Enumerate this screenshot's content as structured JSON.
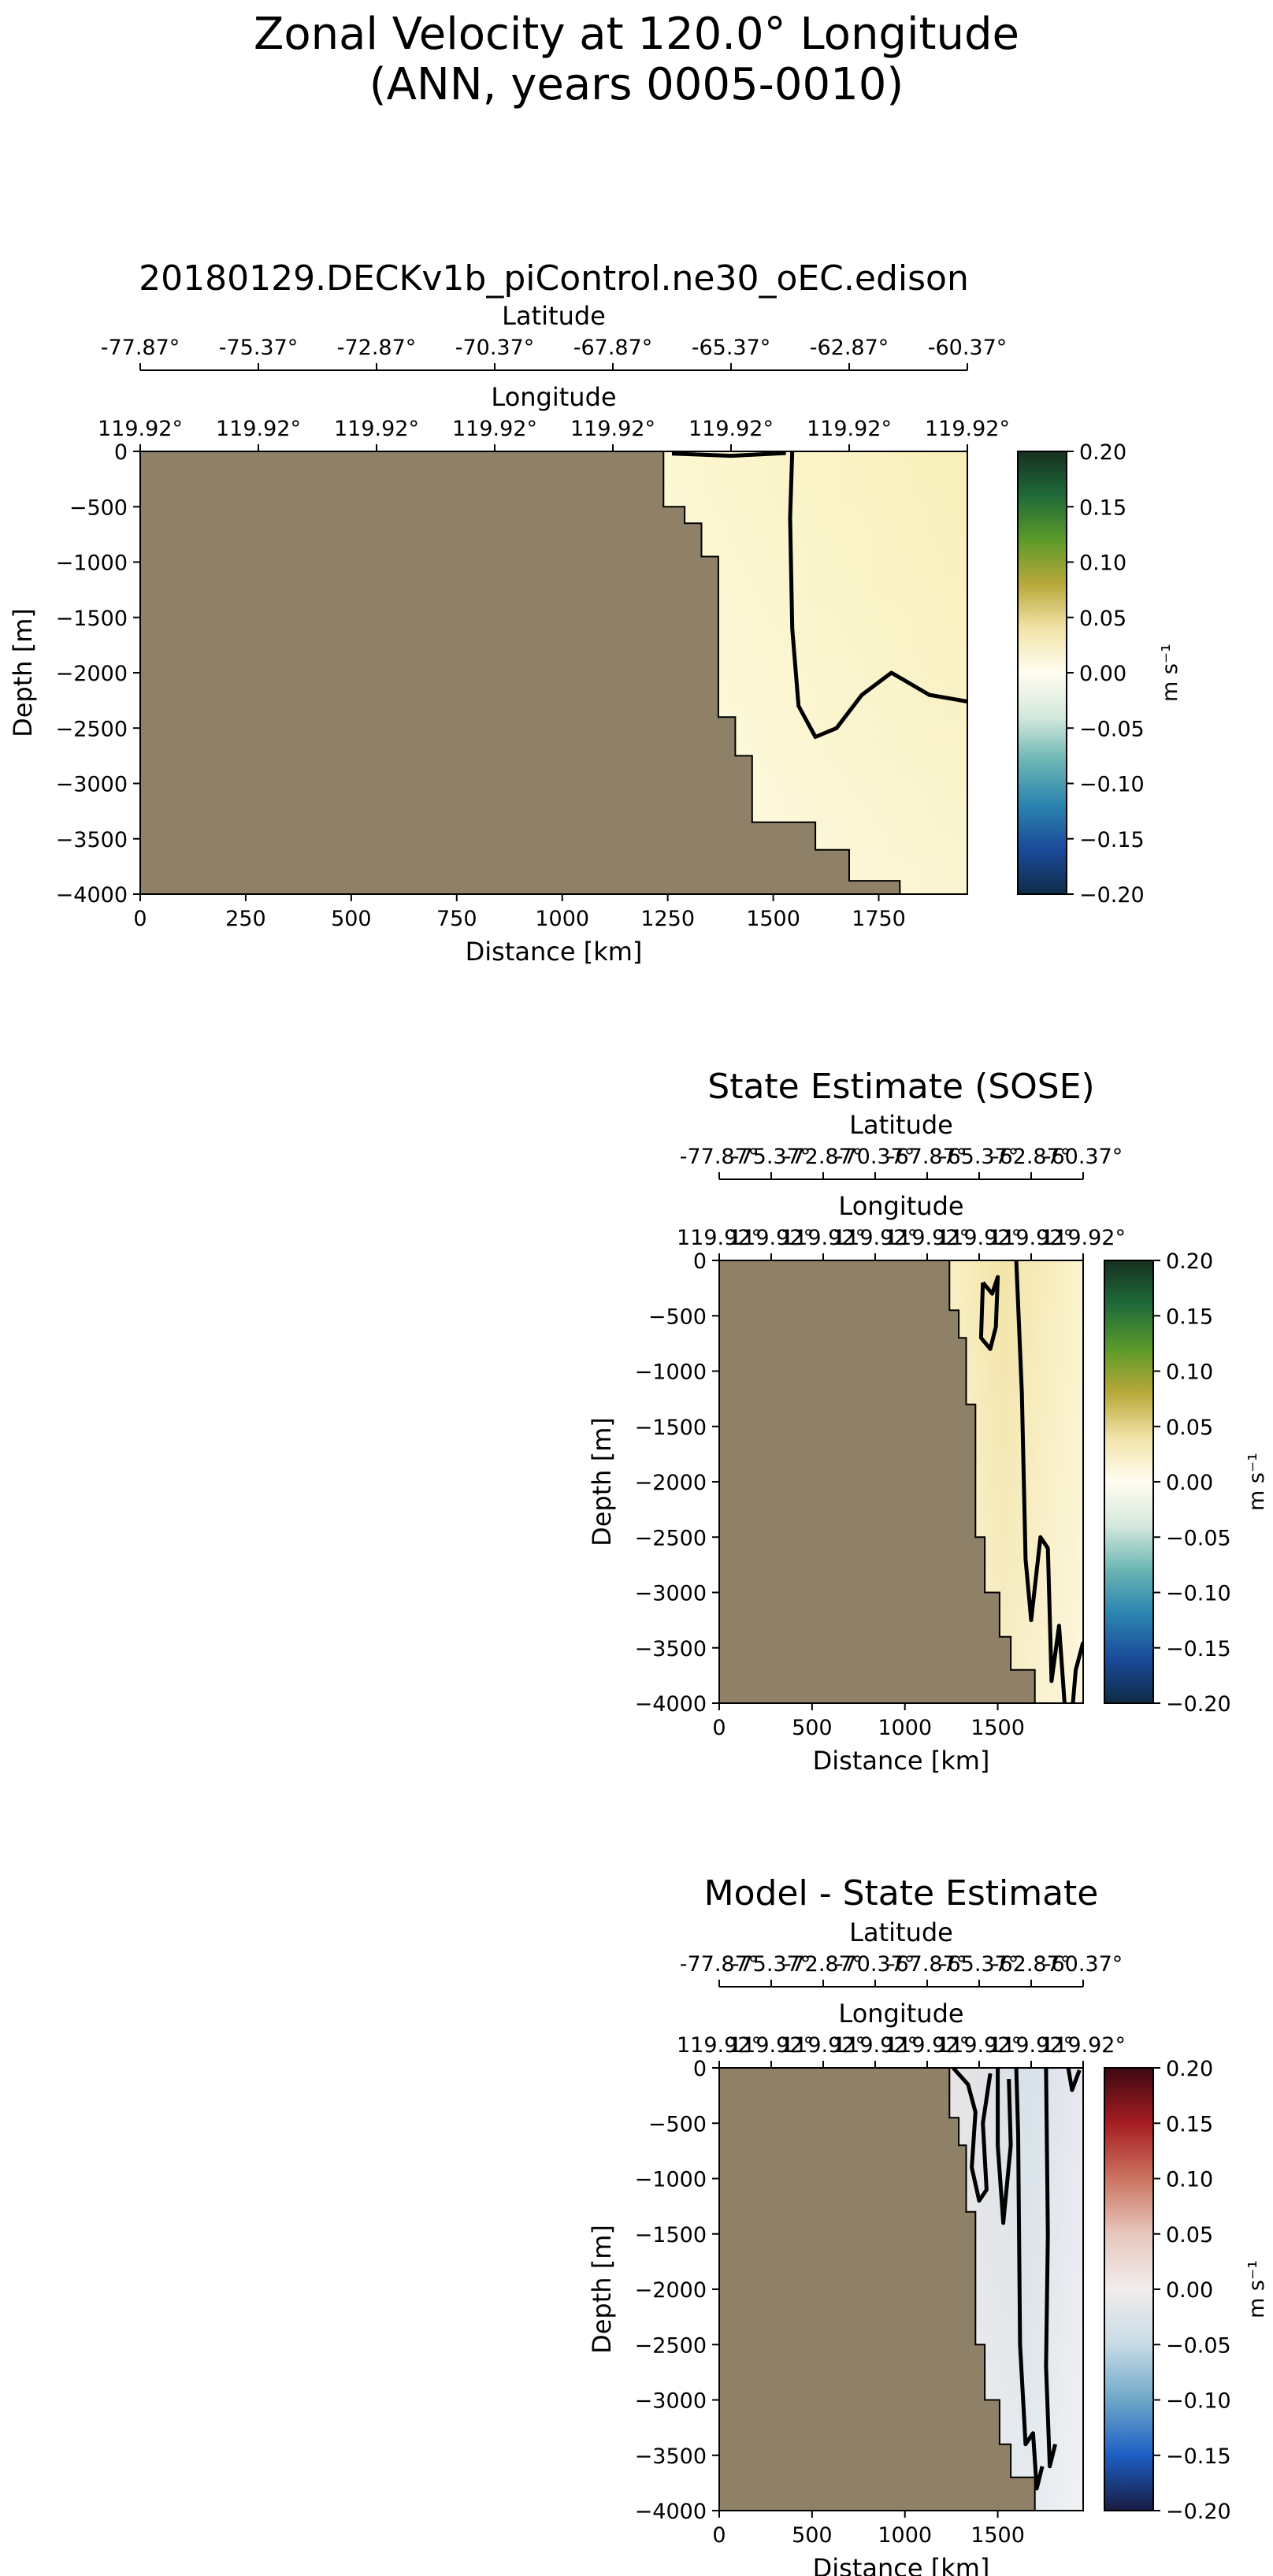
{
  "figure": {
    "title_line1": "Zonal Velocity at 120.0° Longitude",
    "title_line2": "(ANN, years 0005-0010)"
  },
  "colors": {
    "land": "#8f8068",
    "contour": "#000000"
  },
  "chart_data": [
    {
      "type": "heatmap",
      "id": "model",
      "title": "20180129.DECKv1b_piControl.ne30_oEC.edison",
      "xlabel": "Distance [km]",
      "ylabel": "Depth [m]",
      "xlim": [
        0,
        1960
      ],
      "ylim": [
        -4000,
        0
      ],
      "xticks": [
        0,
        250,
        500,
        750,
        1000,
        1250,
        1500,
        1750
      ],
      "yticks": [
        0,
        -500,
        -1000,
        -1500,
        -2000,
        -2500,
        -3000,
        -3500,
        -4000
      ],
      "secondary_axes": [
        {
          "label": "Latitude",
          "ticks": [
            "-77.87°",
            "-75.37°",
            "-72.87°",
            "-70.37°",
            "-67.87°",
            "-65.37°",
            "-62.87°",
            "-60.37°"
          ]
        },
        {
          "label": "Longitude",
          "ticks": [
            "119.92°",
            "119.92°",
            "119.92°",
            "119.92°",
            "119.92°",
            "119.92°",
            "119.92°",
            "119.92°"
          ]
        }
      ],
      "colorbar": {
        "cmap": "delta",
        "label": "m s⁻¹",
        "range": [
          -0.2,
          0.2
        ],
        "ticks": [
          "0.20",
          "0.15",
          "0.10",
          "0.05",
          "0.00",
          "−0.05",
          "−0.10",
          "−0.15",
          "−0.20"
        ]
      },
      "bathymetry_km_m": [
        [
          1240,
          0
        ],
        [
          1240,
          -500
        ],
        [
          1290,
          -500
        ],
        [
          1290,
          -650
        ],
        [
          1330,
          -650
        ],
        [
          1330,
          -950
        ],
        [
          1370,
          -950
        ],
        [
          1370,
          -2400
        ],
        [
          1410,
          -2400
        ],
        [
          1410,
          -2750
        ],
        [
          1450,
          -2750
        ],
        [
          1450,
          -3350
        ],
        [
          1600,
          -3350
        ],
        [
          1600,
          -3600
        ],
        [
          1680,
          -3600
        ],
        [
          1680,
          -3880
        ],
        [
          1800,
          -3880
        ],
        [
          1800,
          -4000
        ]
      ],
      "zero_contours": [
        [
          [
            1260,
            -20
          ],
          [
            1400,
            -40
          ],
          [
            1530,
            -15
          ]
        ],
        [
          [
            1545,
            0
          ],
          [
            1540,
            -600
          ],
          [
            1545,
            -1600
          ],
          [
            1560,
            -2300
          ],
          [
            1600,
            -2580
          ],
          [
            1650,
            -2500
          ],
          [
            1710,
            -2200
          ],
          [
            1780,
            -2000
          ],
          [
            1870,
            -2200
          ],
          [
            1960,
            -2260
          ]
        ]
      ]
    },
    {
      "type": "heatmap",
      "id": "sose",
      "title": "State Estimate (SOSE)",
      "xlabel": "Distance [km]",
      "ylabel": "Depth [m]",
      "xlim": [
        0,
        1960
      ],
      "ylim": [
        -4000,
        0
      ],
      "xticks": [
        0,
        500,
        1000,
        1500
      ],
      "yticks": [
        0,
        -500,
        -1000,
        -1500,
        -2000,
        -2500,
        -3000,
        -3500,
        -4000
      ],
      "secondary_axes": [
        {
          "label": "Latitude",
          "ticks": [
            "-77.87°",
            "-75.37°",
            "-72.87°",
            "-70.37°",
            "-67.87°",
            "-65.37°",
            "-62.87°",
            "-60.37°"
          ]
        },
        {
          "label": "Longitude",
          "ticks": [
            "119.92°",
            "119.92°",
            "119.92°",
            "119.92°",
            "119.92°",
            "119.92°",
            "119.92°",
            "119.92°"
          ]
        }
      ],
      "colorbar": {
        "cmap": "delta",
        "label": "m s⁻¹",
        "range": [
          -0.2,
          0.2
        ],
        "ticks": [
          "0.20",
          "0.15",
          "0.10",
          "0.05",
          "0.00",
          "−0.05",
          "−0.10",
          "−0.15",
          "−0.20"
        ]
      },
      "bathymetry_km_m": [
        [
          1240,
          0
        ],
        [
          1240,
          -450
        ],
        [
          1290,
          -450
        ],
        [
          1290,
          -700
        ],
        [
          1330,
          -700
        ],
        [
          1330,
          -1300
        ],
        [
          1380,
          -1300
        ],
        [
          1380,
          -2500
        ],
        [
          1430,
          -2500
        ],
        [
          1430,
          -3000
        ],
        [
          1510,
          -3000
        ],
        [
          1510,
          -3400
        ],
        [
          1570,
          -3400
        ],
        [
          1570,
          -3700
        ],
        [
          1700,
          -3700
        ],
        [
          1700,
          -4000
        ]
      ],
      "zero_contours": [
        [
          [
            1420,
            -200
          ],
          [
            1470,
            -300
          ],
          [
            1500,
            -150
          ],
          [
            1490,
            -600
          ],
          [
            1460,
            -800
          ],
          [
            1410,
            -700
          ],
          [
            1420,
            -200
          ]
        ],
        [
          [
            1600,
            0
          ],
          [
            1630,
            -1200
          ],
          [
            1650,
            -2700
          ],
          [
            1680,
            -3250
          ],
          [
            1730,
            -2500
          ],
          [
            1770,
            -2600
          ],
          [
            1790,
            -3800
          ],
          [
            1830,
            -3300
          ],
          [
            1860,
            -4000
          ]
        ],
        [
          [
            1960,
            -3450
          ],
          [
            1920,
            -3700
          ],
          [
            1905,
            -4000
          ]
        ]
      ]
    },
    {
      "type": "heatmap",
      "id": "difference",
      "title": "Model - State Estimate",
      "xlabel": "Distance [km]",
      "ylabel": "Depth [m]",
      "xlim": [
        0,
        1960
      ],
      "ylim": [
        -4000,
        0
      ],
      "xticks": [
        0,
        500,
        1000,
        1500
      ],
      "yticks": [
        0,
        -500,
        -1000,
        -1500,
        -2000,
        -2500,
        -3000,
        -3500,
        -4000
      ],
      "secondary_axes": [
        {
          "label": "Latitude",
          "ticks": [
            "-77.87°",
            "-75.37°",
            "-72.87°",
            "-70.37°",
            "-67.87°",
            "-65.37°",
            "-62.87°",
            "-60.37°"
          ]
        },
        {
          "label": "Longitude",
          "ticks": [
            "119.92°",
            "119.92°",
            "119.92°",
            "119.92°",
            "119.92°",
            "119.92°",
            "119.92°",
            "119.92°"
          ]
        }
      ],
      "colorbar": {
        "cmap": "balance",
        "label": "m s⁻¹",
        "range": [
          -0.2,
          0.2
        ],
        "ticks": [
          "0.20",
          "0.15",
          "0.10",
          "0.05",
          "0.00",
          "−0.05",
          "−0.10",
          "−0.15",
          "−0.20"
        ]
      },
      "bathymetry_km_m": [
        [
          1240,
          0
        ],
        [
          1240,
          -450
        ],
        [
          1290,
          -450
        ],
        [
          1290,
          -700
        ],
        [
          1330,
          -700
        ],
        [
          1330,
          -1300
        ],
        [
          1380,
          -1300
        ],
        [
          1380,
          -2500
        ],
        [
          1430,
          -2500
        ],
        [
          1430,
          -3000
        ],
        [
          1510,
          -3000
        ],
        [
          1510,
          -3400
        ],
        [
          1570,
          -3400
        ],
        [
          1570,
          -3700
        ],
        [
          1700,
          -3700
        ],
        [
          1700,
          -4000
        ]
      ],
      "zero_contours": [
        [
          [
            1260,
            0
          ],
          [
            1340,
            -150
          ],
          [
            1380,
            -400
          ],
          [
            1360,
            -900
          ],
          [
            1400,
            -1200
          ],
          [
            1440,
            -1100
          ],
          [
            1420,
            -500
          ],
          [
            1460,
            -50
          ]
        ],
        [
          [
            1500,
            0
          ],
          [
            1500,
            -700
          ],
          [
            1530,
            -1400
          ],
          [
            1570,
            -700
          ],
          [
            1560,
            -100
          ]
        ],
        [
          [
            1600,
            0
          ],
          [
            1610,
            -600
          ],
          [
            1620,
            -2500
          ],
          [
            1650,
            -3400
          ],
          [
            1690,
            -3300
          ],
          [
            1710,
            -3800
          ],
          [
            1740,
            -3600
          ]
        ],
        [
          [
            1760,
            0
          ],
          [
            1770,
            -1500
          ],
          [
            1760,
            -2700
          ],
          [
            1780,
            -3600
          ],
          [
            1810,
            -3400
          ]
        ],
        [
          [
            1880,
            0
          ],
          [
            1900,
            -200
          ],
          [
            1940,
            -20
          ]
        ]
      ]
    }
  ]
}
